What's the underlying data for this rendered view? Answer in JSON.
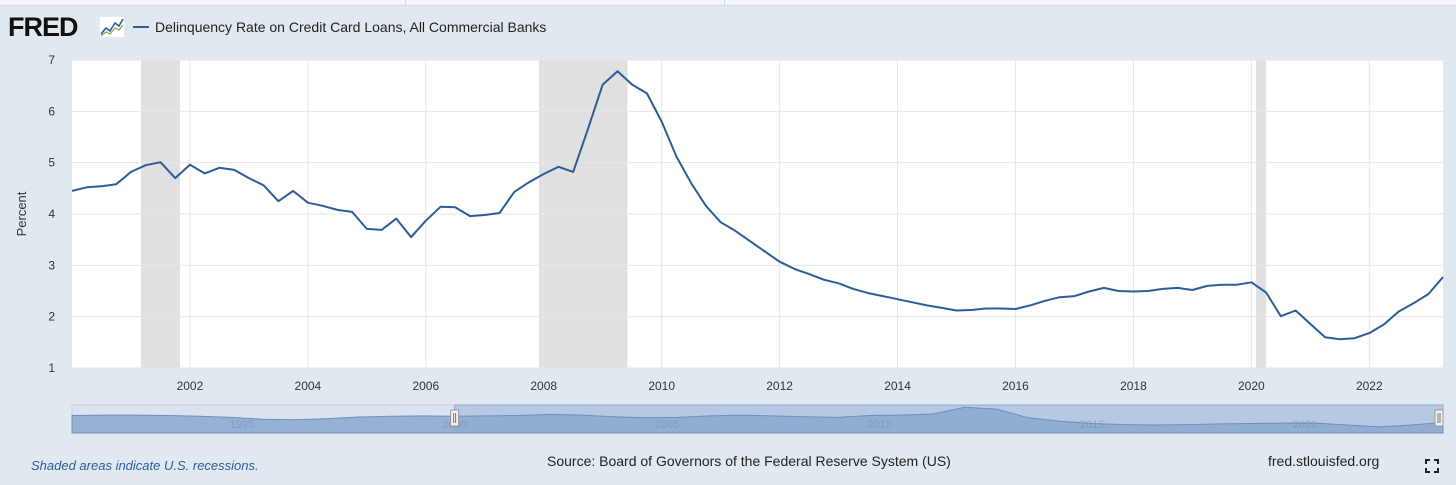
{
  "header": {
    "logo_text": "FRED",
    "logo_icon": "fred-chart-logo-icon"
  },
  "colors": {
    "line": "#2c5d99",
    "recession": "#e0e0e0",
    "plot_bg": "#ffffff",
    "page_bg": "#e1e9f0",
    "navigator_fill": "#8aa8cf",
    "navigator_selected": "#b7c9e2"
  },
  "chart_data": {
    "type": "line",
    "title": "",
    "series": [
      {
        "name": "Delinquency Rate on Credit Card Loans, All Commercial Banks",
        "x": [
          2000.0,
          2000.25,
          2000.5,
          2000.75,
          2001.0,
          2001.25,
          2001.5,
          2001.75,
          2002.0,
          2002.25,
          2002.5,
          2002.75,
          2003.0,
          2003.25,
          2003.5,
          2003.75,
          2004.0,
          2004.25,
          2004.5,
          2004.75,
          2005.0,
          2005.25,
          2005.5,
          2005.75,
          2006.0,
          2006.25,
          2006.5,
          2006.75,
          2007.0,
          2007.25,
          2007.5,
          2007.75,
          2008.0,
          2008.25,
          2008.5,
          2008.75,
          2009.0,
          2009.25,
          2009.5,
          2009.75,
          2010.0,
          2010.25,
          2010.5,
          2010.75,
          2011.0,
          2011.25,
          2011.5,
          2011.75,
          2012.0,
          2012.25,
          2012.5,
          2012.75,
          2013.0,
          2013.25,
          2013.5,
          2013.75,
          2014.0,
          2014.25,
          2014.5,
          2014.75,
          2015.0,
          2015.25,
          2015.5,
          2015.75,
          2016.0,
          2016.25,
          2016.5,
          2016.75,
          2017.0,
          2017.25,
          2017.5,
          2017.75,
          2018.0,
          2018.25,
          2018.5,
          2018.75,
          2019.0,
          2019.25,
          2019.5,
          2019.75,
          2020.0,
          2020.25,
          2020.5,
          2020.75,
          2021.0,
          2021.25,
          2021.5,
          2021.75,
          2022.0,
          2022.25,
          2022.5,
          2022.75,
          2023.0,
          2023.25
        ],
        "values": [
          4.45,
          4.52,
          4.54,
          4.58,
          4.82,
          4.95,
          5.01,
          4.7,
          4.96,
          4.79,
          4.9,
          4.86,
          4.7,
          4.56,
          4.25,
          4.45,
          4.22,
          4.16,
          4.08,
          4.04,
          3.71,
          3.69,
          3.91,
          3.55,
          3.87,
          4.14,
          4.13,
          3.96,
          3.98,
          4.02,
          4.43,
          4.62,
          4.78,
          4.92,
          4.82,
          5.66,
          6.52,
          6.78,
          6.52,
          6.35,
          5.8,
          5.12,
          4.6,
          4.16,
          3.84,
          3.67,
          3.47,
          3.27,
          3.07,
          2.93,
          2.83,
          2.72,
          2.65,
          2.54,
          2.46,
          2.4,
          2.34,
          2.28,
          2.22,
          2.17,
          2.12,
          2.13,
          2.16,
          2.16,
          2.15,
          2.22,
          2.31,
          2.38,
          2.4,
          2.49,
          2.56,
          2.5,
          2.49,
          2.5,
          2.54,
          2.56,
          2.52,
          2.6,
          2.62,
          2.62,
          2.67,
          2.47,
          2.01,
          2.12,
          1.86,
          1.6,
          1.56,
          1.58,
          1.68,
          1.85,
          2.1,
          2.26,
          2.44,
          2.77
        ]
      }
    ],
    "recessions": [
      [
        2001.17,
        2001.83
      ],
      [
        2007.92,
        2009.42
      ],
      [
        2020.08,
        2020.25
      ]
    ],
    "xlim": [
      2000.0,
      2023.25
    ],
    "ylim": [
      1,
      7
    ],
    "xticks": [
      "2002",
      "2004",
      "2006",
      "2008",
      "2010",
      "2012",
      "2014",
      "2016",
      "2018",
      "2020",
      "2022"
    ],
    "xtick_values": [
      2002,
      2004,
      2006,
      2008,
      2010,
      2012,
      2014,
      2016,
      2018,
      2020,
      2022
    ],
    "yticks": [
      "1",
      "2",
      "3",
      "4",
      "5",
      "6",
      "7"
    ],
    "ytick_values": [
      1,
      2,
      3,
      4,
      5,
      6,
      7
    ],
    "ylabel": "Percent",
    "xlabel": "",
    "grid": true,
    "legend": "top-left",
    "navigator": {
      "labels": [
        "1995",
        "2000",
        "2005",
        "2010",
        "2015",
        "2020"
      ],
      "label_years": [
        1995,
        2000,
        2005,
        2010,
        2015,
        2020
      ],
      "range": [
        1991.0,
        2023.25
      ],
      "selected": [
        2000.0,
        2023.25
      ],
      "values": [
        4.6,
        4.7,
        4.7,
        4.6,
        4.4,
        4.1,
        3.6,
        3.5,
        3.8,
        4.2,
        4.4,
        4.5,
        4.4,
        4.5,
        4.6,
        4.9,
        4.7,
        4.3,
        4.0,
        4.1,
        4.5,
        4.7,
        4.5,
        4.3,
        4.1,
        4.6,
        4.7,
        5.0,
        6.8,
        6.3,
        4.0,
        3.1,
        2.5,
        2.2,
        2.1,
        2.2,
        2.4,
        2.5,
        2.6,
        2.6,
        2.1,
        1.6,
        2.1,
        2.8
      ]
    }
  },
  "footer": {
    "recession_note": "Shaded areas indicate U.S. recessions.",
    "source": "Source: Board of Governors of the Federal Reserve System (US)",
    "site": "fred.stlouisfed.org",
    "fullscreen_icon": "fullscreen-icon"
  }
}
